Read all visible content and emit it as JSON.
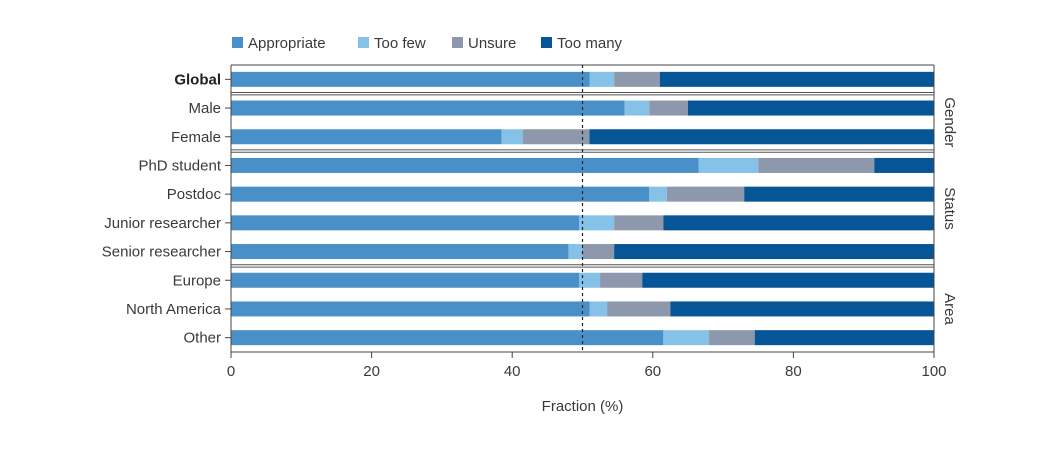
{
  "chart_data": {
    "type": "bar",
    "orientation": "horizontal",
    "stacked": true,
    "xlabel": "Fraction (%)",
    "xlim": [
      0,
      100
    ],
    "xticks": [
      "0",
      "20",
      "40",
      "60",
      "80",
      "100"
    ],
    "reference_line": 50,
    "legend_position": "top-left",
    "grid": false,
    "categories": [
      "Global",
      "Male",
      "Female",
      "PhD student",
      "Postdoc",
      "Junior researcher",
      "Senior researcher",
      "Europe",
      "North America",
      "Other"
    ],
    "bold_categories": [
      "Global"
    ],
    "groups": [
      {
        "label": "Gender",
        "categories": [
          "Male",
          "Female"
        ]
      },
      {
        "label": "Status",
        "categories": [
          "PhD student",
          "Postdoc",
          "Junior researcher",
          "Senior researcher"
        ]
      },
      {
        "label": "Area",
        "categories": [
          "Europe",
          "North America",
          "Other"
        ]
      }
    ],
    "series": [
      {
        "name": "Appropriate",
        "color": "#4a90c8",
        "values": [
          51,
          56,
          38.5,
          66.5,
          59.5,
          49.5,
          48,
          49.5,
          51,
          61.5
        ]
      },
      {
        "name": "Too few",
        "color": "#86c1e8",
        "values": [
          3.5,
          3.5,
          3,
          8.5,
          2.5,
          5,
          2,
          3,
          2.5,
          6.5
        ]
      },
      {
        "name": "Unsure",
        "color": "#8d98ad",
        "values": [
          6.5,
          5.5,
          9.5,
          16.5,
          11,
          7,
          4.5,
          6,
          9,
          6.5
        ]
      },
      {
        "name": "Too many",
        "color": "#065596",
        "values": [
          39,
          35,
          49,
          8.5,
          27,
          38.5,
          45.5,
          41.5,
          37.5,
          25.5
        ]
      }
    ]
  }
}
